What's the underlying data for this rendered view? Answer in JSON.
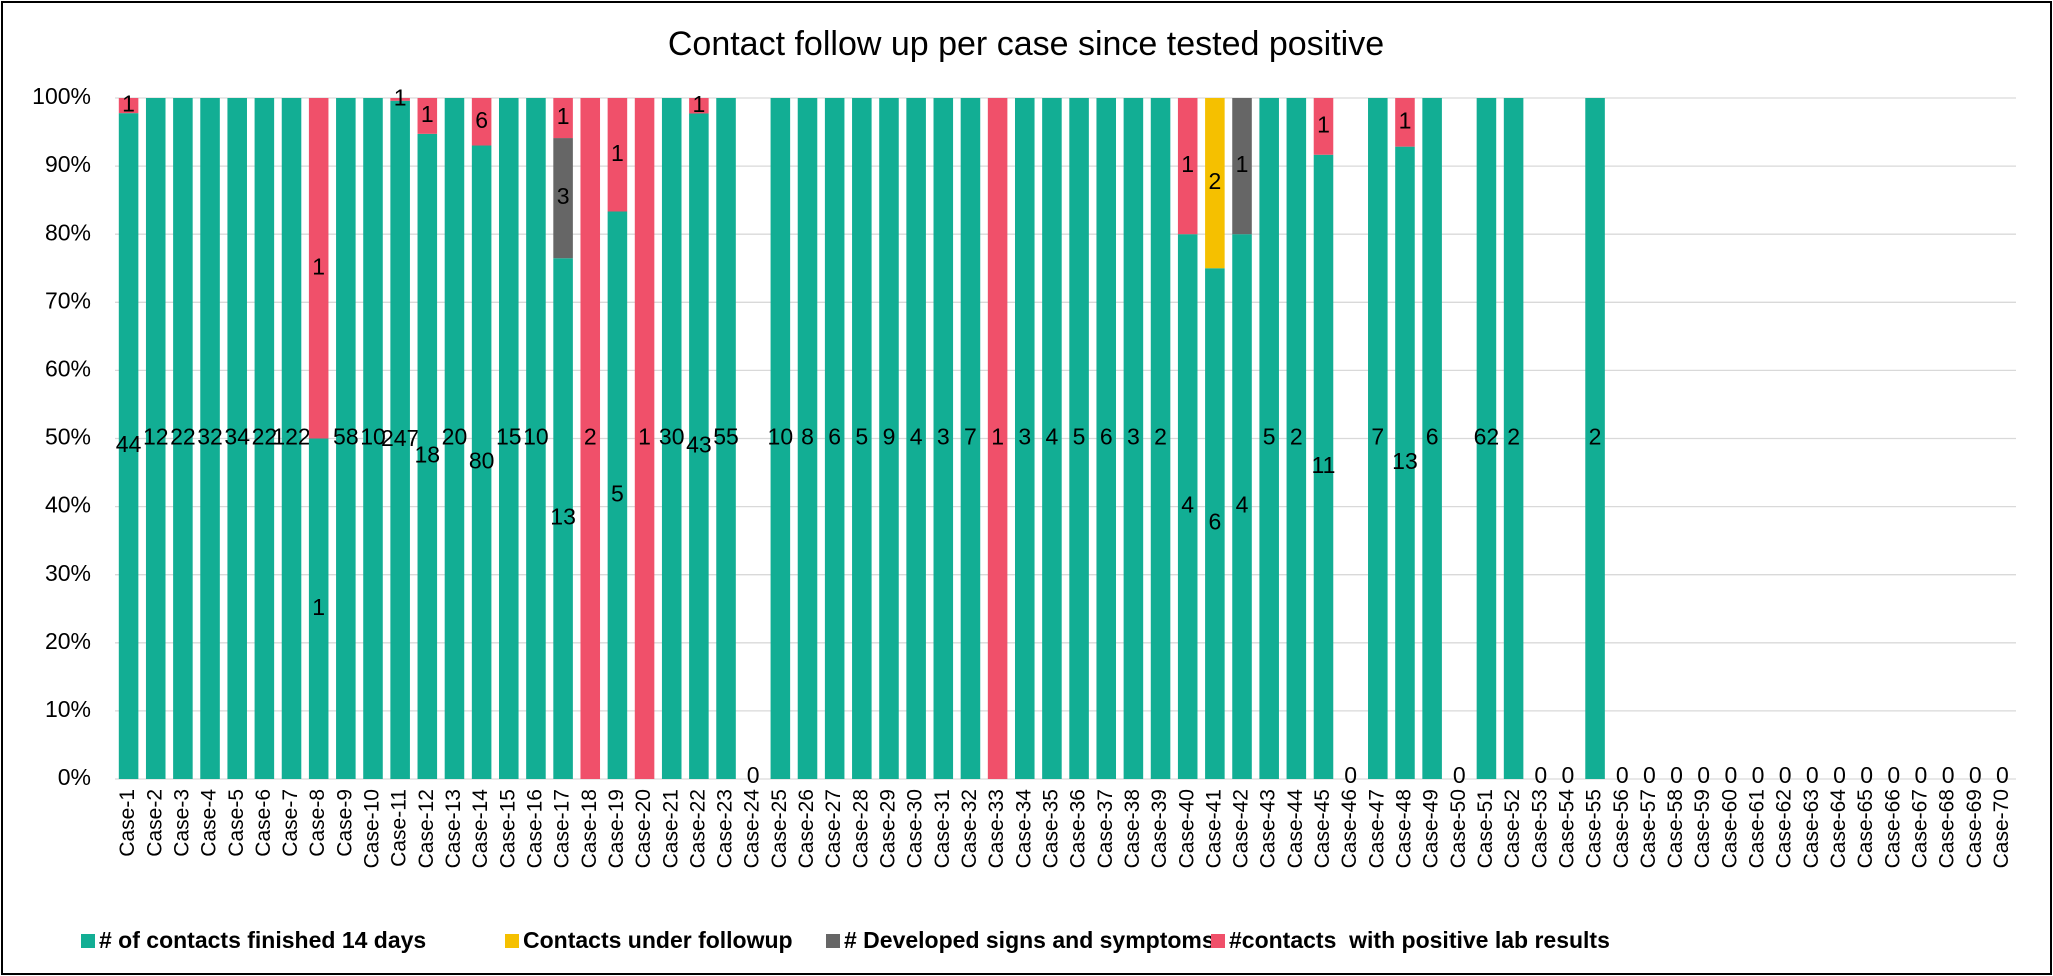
{
  "chart_data": {
    "type": "bar",
    "stacking": "percent",
    "title": "Contact follow up per case since tested positive",
    "categories": [
      "Case-1",
      "Case-2",
      "Case-3",
      "Case-4",
      "Case-5",
      "Case-6",
      "Case-7",
      "Case-8",
      "Case-9",
      "Case-10",
      "Case-11",
      "Case-12",
      "Case-13",
      "Case-14",
      "Case-15",
      "Case-16",
      "Case-17",
      "Case-18",
      "Case-19",
      "Case-20",
      "Case-21",
      "Case-22",
      "Case-23",
      "Case-24",
      "Case-25",
      "Case-26",
      "Case-27",
      "Case-28",
      "Case-29",
      "Case-30",
      "Case-31",
      "Case-32",
      "Case-33",
      "Case-34",
      "Case-35",
      "Case-36",
      "Case-37",
      "Case-38",
      "Case-39",
      "Case-40",
      "Case-41",
      "Case-42",
      "Case-43",
      "Case-44",
      "Case-45",
      "Case-46",
      "Case-47",
      "Case-48",
      "Case-49",
      "Case-50",
      "Case-51",
      "Case-52",
      "Case-53",
      "Case-54",
      "Case-55",
      "Case-56",
      "Case-57",
      "Case-58",
      "Case-59",
      "Case-60",
      "Case-61",
      "Case-62",
      "Case-63",
      "Case-64",
      "Case-65",
      "Case-66",
      "Case-67",
      "Case-68",
      "Case-69",
      "Case-70"
    ],
    "series": [
      {
        "name": "# of contacts finished 14 days",
        "color": "#12ae94",
        "values": [
          44,
          12,
          22,
          32,
          34,
          22,
          122,
          1,
          58,
          10,
          247,
          18,
          20,
          80,
          15,
          10,
          13,
          0,
          5,
          0,
          30,
          43,
          55,
          0,
          10,
          8,
          6,
          5,
          9,
          4,
          3,
          7,
          0,
          3,
          4,
          5,
          6,
          3,
          2,
          4,
          6,
          4,
          5,
          2,
          11,
          0,
          7,
          13,
          6,
          0,
          62,
          2,
          0,
          0,
          2,
          0,
          0,
          0,
          0,
          0,
          0,
          0,
          0,
          0,
          0,
          0,
          0,
          0,
          0,
          0
        ]
      },
      {
        "name": "Contacts under followup",
        "color": "#f5c000",
        "values": [
          0,
          0,
          0,
          0,
          0,
          0,
          0,
          0,
          0,
          0,
          0,
          0,
          0,
          0,
          0,
          0,
          0,
          0,
          0,
          0,
          0,
          0,
          0,
          0,
          0,
          0,
          0,
          0,
          0,
          0,
          0,
          0,
          0,
          0,
          0,
          0,
          0,
          0,
          0,
          0,
          2,
          0,
          0,
          0,
          0,
          0,
          0,
          0,
          0,
          0,
          0,
          0,
          0,
          0,
          0,
          0,
          0,
          0,
          0,
          0,
          0,
          0,
          0,
          0,
          0,
          0,
          0,
          0,
          0,
          0
        ]
      },
      {
        "name": "# Developed signs and symptoms",
        "color": "#666666",
        "values": [
          0,
          0,
          0,
          0,
          0,
          0,
          0,
          0,
          0,
          0,
          0,
          0,
          0,
          0,
          0,
          0,
          3,
          0,
          0,
          0,
          0,
          0,
          0,
          0,
          0,
          0,
          0,
          0,
          0,
          0,
          0,
          0,
          0,
          0,
          0,
          0,
          0,
          0,
          0,
          0,
          0,
          1,
          0,
          0,
          0,
          0,
          0,
          0,
          0,
          0,
          0,
          0,
          0,
          0,
          0,
          0,
          0,
          0,
          0,
          0,
          0,
          0,
          0,
          0,
          0,
          0,
          0,
          0,
          0,
          0
        ]
      },
      {
        "name": "#contacts  with positive lab results",
        "color": "#f0506a",
        "values": [
          1,
          0,
          0,
          0,
          0,
          0,
          0,
          1,
          0,
          0,
          1,
          1,
          0,
          6,
          0,
          0,
          1,
          2,
          1,
          1,
          0,
          1,
          0,
          0,
          0,
          0,
          0,
          0,
          0,
          0,
          0,
          0,
          1,
          0,
          0,
          0,
          0,
          0,
          0,
          1,
          0,
          0,
          0,
          0,
          1,
          0,
          0,
          1,
          0,
          0,
          0,
          0,
          0,
          0,
          0,
          0,
          0,
          0,
          0,
          0,
          0,
          0,
          0,
          0,
          0,
          0,
          0,
          0,
          0,
          0
        ]
      }
    ],
    "ylim": [
      0,
      100
    ],
    "yticks": [
      {
        "value": 0,
        "label": "0%"
      },
      {
        "value": 10,
        "label": "10%"
      },
      {
        "value": 20,
        "label": "20%"
      },
      {
        "value": 30,
        "label": "30%"
      },
      {
        "value": 40,
        "label": "40%"
      },
      {
        "value": 50,
        "label": "50%"
      },
      {
        "value": 60,
        "label": "60%"
      },
      {
        "value": 70,
        "label": "70%"
      },
      {
        "value": 80,
        "label": "80%"
      },
      {
        "value": 90,
        "label": "90%"
      },
      {
        "value": 100,
        "label": "100%"
      }
    ],
    "grid": true,
    "legend": "bottom"
  }
}
